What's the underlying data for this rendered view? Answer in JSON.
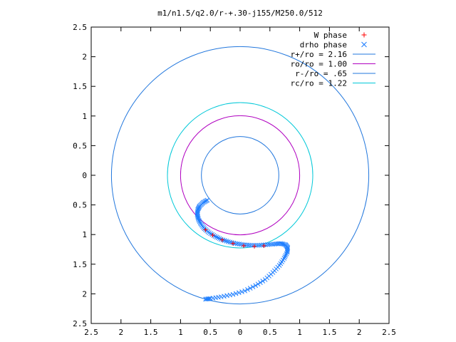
{
  "chart_data": {
    "type": "line",
    "title": "m1/n1.5/q2.0/r-+.30-j155/M250.0/512",
    "xlabel": "",
    "ylabel": "",
    "xlim": [
      -2.5,
      2.5
    ],
    "ylim": [
      -2.5,
      2.5
    ],
    "x_ticks": [
      "2.5",
      "2",
      "1.5",
      "1",
      "0.5",
      "0",
      "0.5",
      "1",
      "1.5",
      "2",
      "2.5"
    ],
    "y_ticks": [
      "2.5",
      "2",
      "1.5",
      "1",
      "0.5",
      "0",
      "0.5",
      "1",
      "1.5",
      "2",
      "2.5"
    ],
    "grid": false,
    "legend_position": "top-right",
    "legend": [
      {
        "label": "W phase",
        "marker": "plus",
        "color": "#ff0000"
      },
      {
        "label": "drho phase",
        "marker": "cross",
        "color": "#1f7fff"
      },
      {
        "label": "r+/ro = 2.16",
        "marker": "line",
        "color": "#2277dd"
      },
      {
        "label": "ro/ro = 1.00",
        "marker": "line",
        "color": "#b000c0"
      },
      {
        "label": "r-/ro = .65",
        "marker": "line",
        "color": "#2277dd"
      },
      {
        "label": "rc/ro = 1.22",
        "marker": "line",
        "color": "#00c8d8"
      }
    ],
    "circles": [
      {
        "name": "r+/ro = 2.16",
        "radius": 2.16,
        "color": "#2277dd"
      },
      {
        "name": "ro/ro = 1.00",
        "radius": 1.0,
        "color": "#b000c0"
      },
      {
        "name": "r-/ro = .65",
        "radius": 0.65,
        "color": "#2277dd"
      },
      {
        "name": "rc/ro = 1.22",
        "radius": 1.22,
        "color": "#00c8d8"
      }
    ],
    "series": [
      {
        "name": "drho phase",
        "color": "#1f7fff",
        "marker": "cross",
        "points": [
          [
            -0.55,
            -0.42
          ],
          [
            -0.62,
            -0.46
          ],
          [
            -0.68,
            -0.52
          ],
          [
            -0.71,
            -0.58
          ],
          [
            -0.72,
            -0.66
          ],
          [
            -0.7,
            -0.74
          ],
          [
            -0.66,
            -0.82
          ],
          [
            -0.6,
            -0.9
          ],
          [
            -0.52,
            -0.97
          ],
          [
            -0.42,
            -1.03
          ],
          [
            -0.32,
            -1.08
          ],
          [
            -0.2,
            -1.12
          ],
          [
            -0.08,
            -1.15
          ],
          [
            0.05,
            -1.17
          ],
          [
            0.18,
            -1.18
          ],
          [
            0.32,
            -1.18
          ],
          [
            0.46,
            -1.17
          ],
          [
            0.58,
            -1.16
          ],
          [
            0.68,
            -1.15
          ],
          [
            0.76,
            -1.17
          ],
          [
            0.8,
            -1.22
          ],
          [
            0.79,
            -1.3
          ],
          [
            0.74,
            -1.4
          ],
          [
            0.66,
            -1.52
          ],
          [
            0.55,
            -1.64
          ],
          [
            0.42,
            -1.76
          ],
          [
            0.26,
            -1.86
          ],
          [
            0.08,
            -1.95
          ],
          [
            -0.12,
            -2.01
          ],
          [
            -0.32,
            -2.05
          ],
          [
            -0.5,
            -2.08
          ],
          [
            -0.58,
            -2.09
          ]
        ]
      },
      {
        "name": "W phase",
        "color": "#ff0000",
        "marker": "plus",
        "points": [
          [
            -0.58,
            -0.92
          ],
          [
            -0.46,
            -1.01
          ],
          [
            -0.3,
            -1.09
          ],
          [
            -0.12,
            -1.15
          ],
          [
            0.06,
            -1.19
          ],
          [
            0.24,
            -1.2
          ],
          [
            0.4,
            -1.19
          ]
        ]
      }
    ]
  }
}
